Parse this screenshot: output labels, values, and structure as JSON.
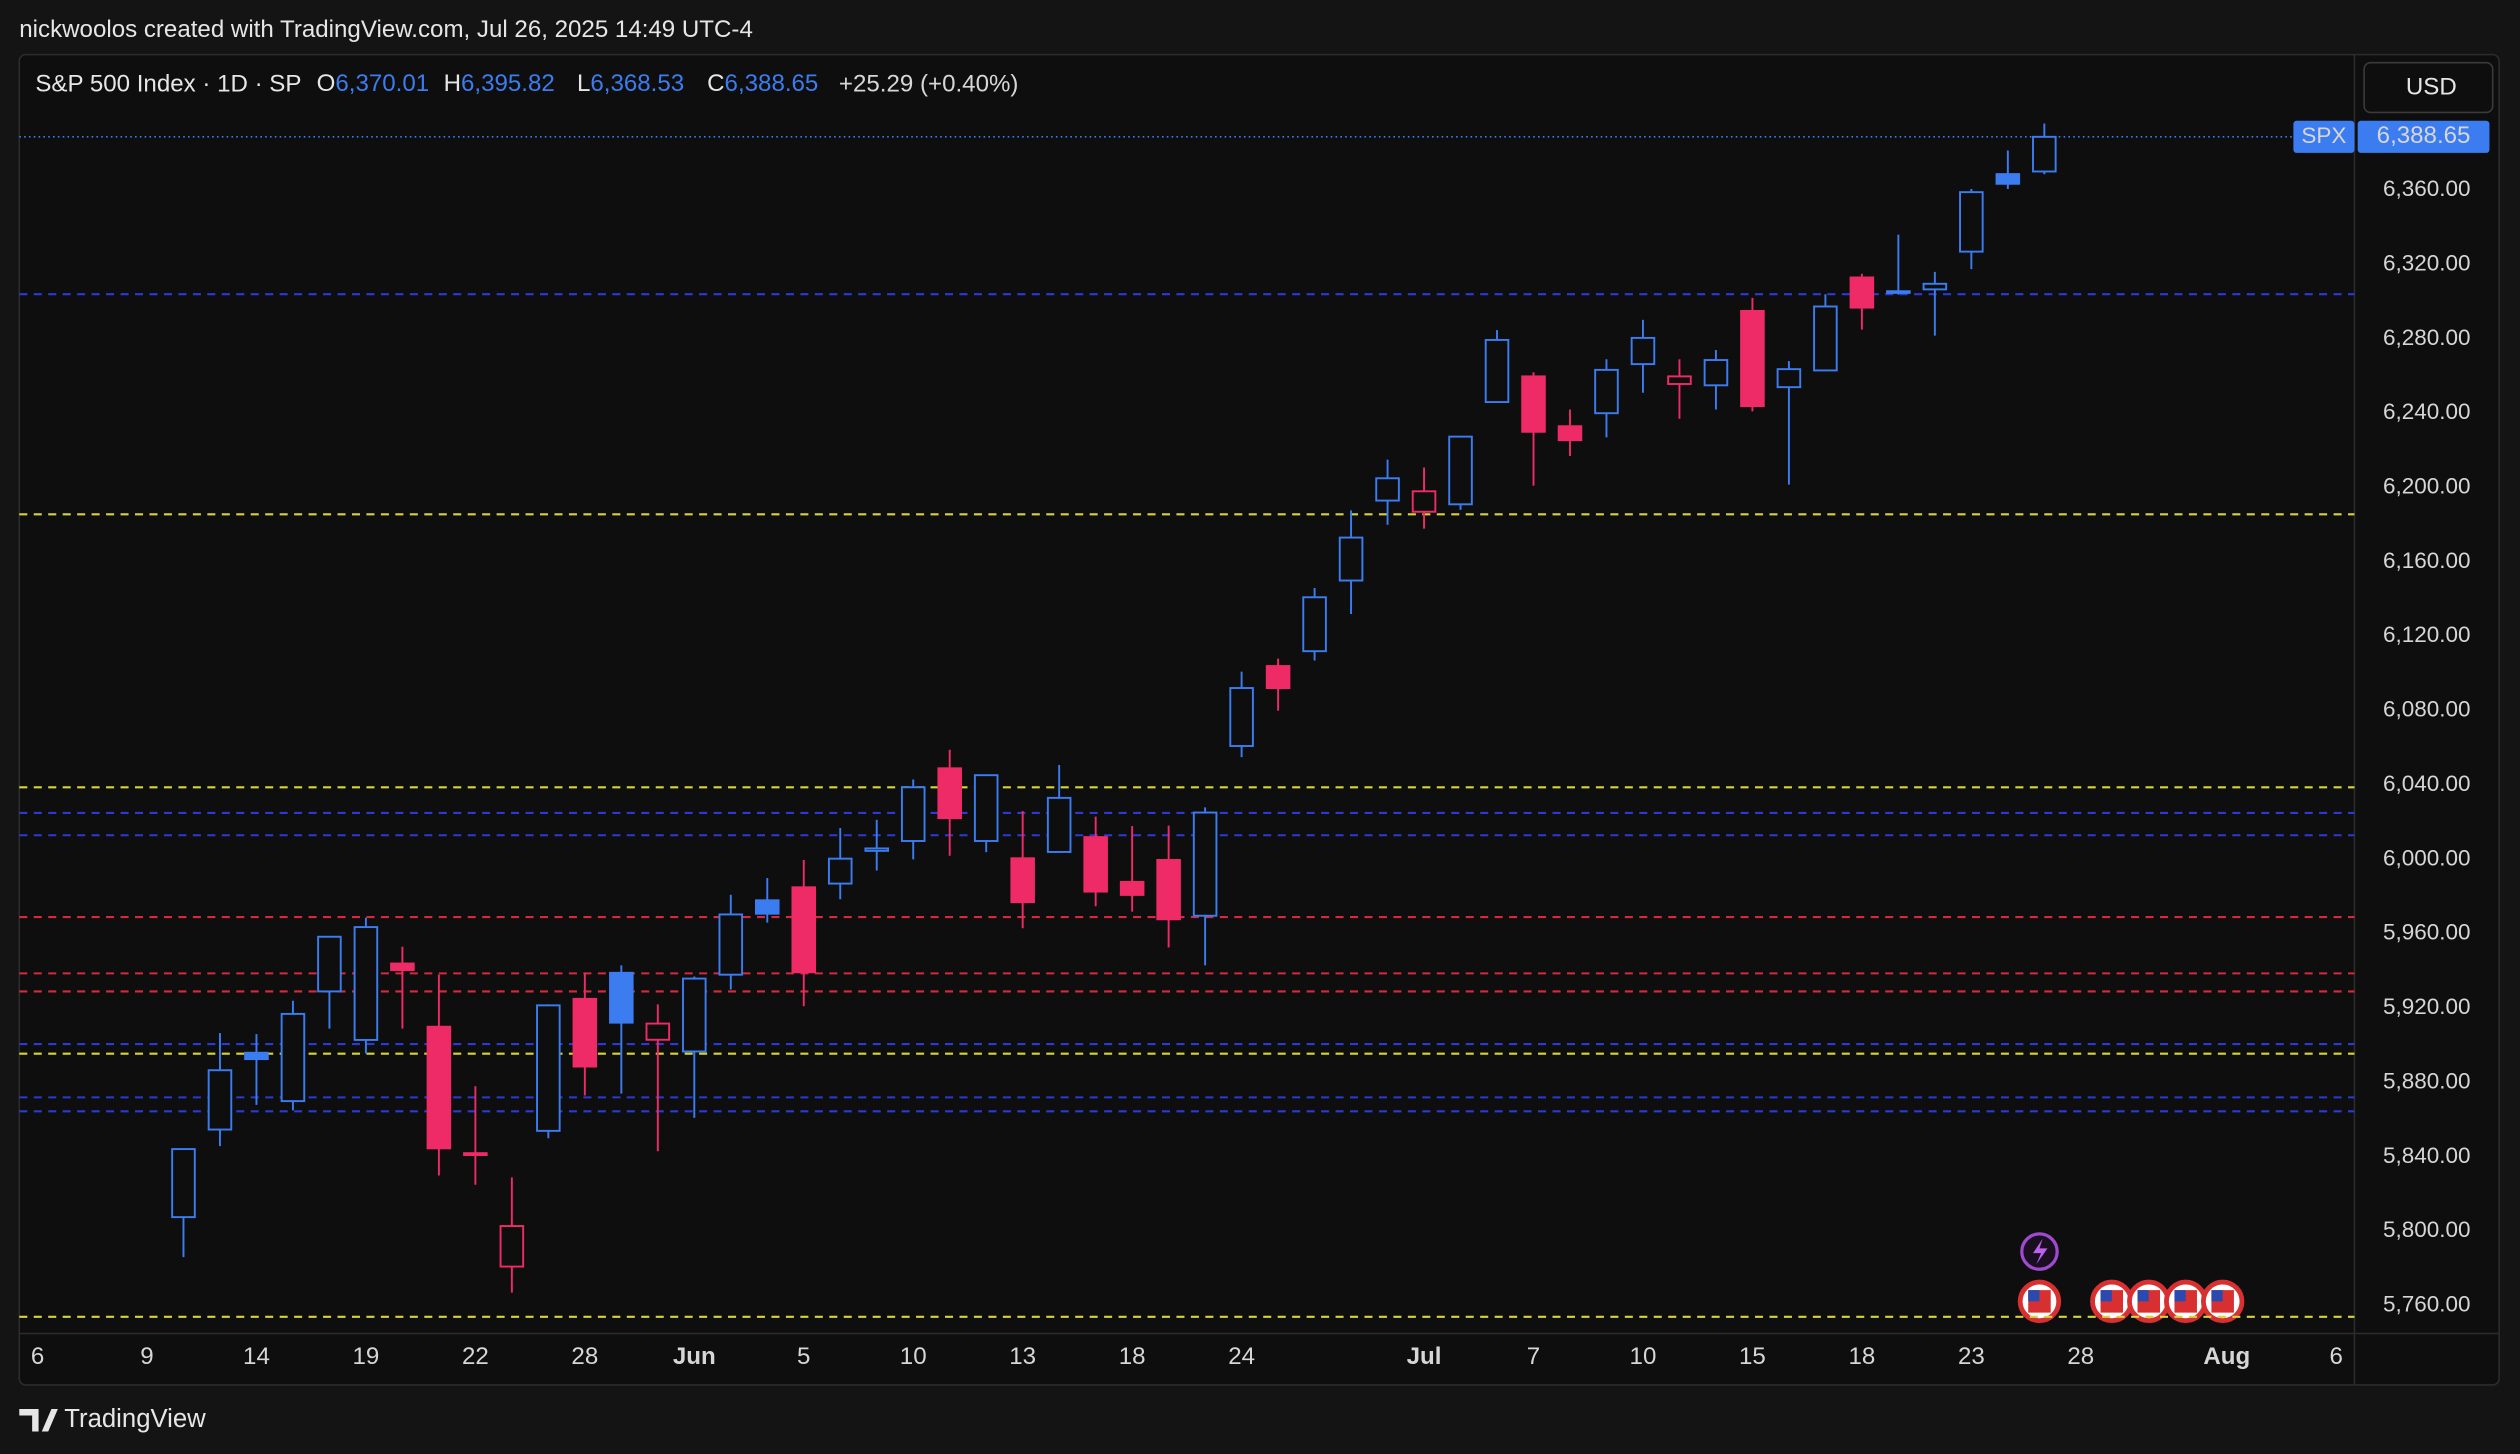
{
  "attribution": "nickwoolos created with TradingView.com, Jul 26, 2025 14:49 UTC-4",
  "currency": "USD",
  "brand": "TradingView",
  "chart_data": {
    "type": "candlestick",
    "header": {
      "title": "S&P 500 Index · 1D · SP",
      "ohlc": [
        {
          "key": "O",
          "label": "6,370.01"
        },
        {
          "key": "H",
          "label": "6,395.82"
        },
        {
          "key": "L",
          "label": "6,368.53"
        },
        {
          "key": "C",
          "label": "6,388.65"
        }
      ],
      "change": "+25.29 (+0.40%)"
    },
    "categories": [
      "6",
      null,
      null,
      "9",
      null,
      null,
      "14",
      null,
      null,
      "19",
      null,
      null,
      "22",
      null,
      null,
      "28",
      null,
      null,
      "Jun",
      null,
      null,
      "5",
      null,
      null,
      "10",
      null,
      null,
      "13",
      null,
      null,
      "18",
      null,
      null,
      "24",
      null,
      null,
      null,
      null,
      "Jul",
      null,
      null,
      "7",
      null,
      null,
      "10",
      null,
      null,
      "15",
      null,
      null,
      "18",
      null,
      null,
      "23",
      null,
      null,
      "28",
      null,
      null,
      null,
      "Aug",
      null,
      null,
      "6"
    ],
    "open": [
      null,
      null,
      null,
      null,
      5807.6,
      5854.7,
      5896,
      5870,
      5929,
      5902.9,
      5944,
      5910,
      5841,
      5781,
      5854,
      5925,
      5939,
      5903,
      5896.7,
      5938,
      5978,
      5985,
      5987,
      6004.6,
      6009.9,
      6049,
      6009.9,
      6000.6,
      6004,
      6012,
      5987.9,
      5999.7,
      5969.7,
      6061,
      6104,
      6112,
      6150,
      6193,
      6187,
      6191,
      6246,
      6259.8,
      6233,
      6240,
      6266.4,
      6255.7,
      6255,
      6295,
      6254,
      6263,
      6313,
      6304.7,
      6306.6,
      6326.9,
      6368.6,
      6370.01,
      null,
      null,
      null,
      null,
      null,
      null,
      null,
      null
    ],
    "high": [
      null,
      null,
      null,
      null,
      5844.2,
      5906.6,
      5906,
      5924,
      5958.6,
      5968.6,
      5953,
      5938,
      5878,
      5829,
      5922,
      5939,
      5943,
      5922,
      5937,
      5981,
      5990,
      5999.7,
      6016.9,
      6021.3,
      6043,
      6059,
      6045.4,
      6026,
      6050.8,
      6023,
      6018,
      6018.2,
      6028,
      6101,
      6108,
      6146,
      6187.7,
      6215,
      6210.8,
      6227.6,
      6284.7,
      6262,
      6242,
      6269,
      6290.2,
      6269,
      6274,
      6302,
      6268,
      6304,
      6315,
      6336,
      6316,
      6360.6,
      6381.3,
      6395.82,
      null,
      null,
      null,
      null,
      null,
      null,
      null,
      null
    ],
    "low": [
      null,
      null,
      null,
      null,
      5786.1,
      5845.8,
      5868,
      5865,
      5909,
      5895.7,
      5909,
      5830,
      5825,
      5767,
      5850,
      5873,
      5874,
      5843,
      5861,
      5930,
      5966,
      5921,
      5978.6,
      5994,
      6000,
      6002,
      6003.9,
      5963,
      6004,
      5974.8,
      5971.9,
      5952.6,
      5943,
      6055,
      6080,
      6107,
      6132,
      6180,
      6177.9,
      6188,
      6246,
      6201,
      6217,
      6227,
      6251,
      6237,
      6242,
      6241,
      6201.6,
      6263,
      6285,
      6303.8,
      6281.7,
      6317.5,
      6360.6,
      6368.53,
      null,
      null,
      null,
      null,
      null,
      null,
      null,
      null
    ],
    "close": [
      null,
      null,
      null,
      null,
      5844.2,
      5886.6,
      5892.6,
      5916.9,
      5958.4,
      5963.6,
      5940.5,
      5844.6,
      5842,
      5802.8,
      5921.5,
      5888.6,
      5912.2,
      5911.7,
      5935.9,
      5970.4,
      5970.8,
      5939.3,
      6000.4,
      6005.9,
      6038.8,
      6022.2,
      6045.3,
      5977,
      6033.1,
      5982.7,
      5980.9,
      5967.8,
      6025.2,
      6092.18,
      6092.16,
      6141,
      6173.1,
      6205,
      6198,
      6227.4,
      6279.4,
      6230,
      6225.5,
      6263.3,
      6280.5,
      6259.8,
      6268.6,
      6243.8,
      6263.7,
      6297.4,
      6296.8,
      6305.6,
      6309.6,
      6358.9,
      6363.4,
      6388.65,
      null,
      null,
      null,
      null,
      null,
      null,
      null,
      null
    ],
    "up_color": "#3b7cf0",
    "down_color": "#ee2a67",
    "ylim": [
      5745,
      6432
    ],
    "yticks": [
      {
        "value": 5760,
        "label": "5,760.00"
      },
      {
        "value": 5800,
        "label": "5,800.00"
      },
      {
        "value": 5840,
        "label": "5,840.00"
      },
      {
        "value": 5880,
        "label": "5,880.00"
      },
      {
        "value": 5920,
        "label": "5,920.00"
      },
      {
        "value": 5960,
        "label": "5,960.00"
      },
      {
        "value": 6000,
        "label": "6,000.00"
      },
      {
        "value": 6040,
        "label": "6,040.00"
      },
      {
        "value": 6080,
        "label": "6,080.00"
      },
      {
        "value": 6120,
        "label": "6,120.00"
      },
      {
        "value": 6160,
        "label": "6,160.00"
      },
      {
        "value": 6200,
        "label": "6,200.00"
      },
      {
        "value": 6240,
        "label": "6,240.00"
      },
      {
        "value": 6280,
        "label": "6,280.00"
      },
      {
        "value": 6320,
        "label": "6,320.00"
      },
      {
        "value": 6360,
        "label": "6,360.00"
      }
    ],
    "grid": false,
    "levels": [
      {
        "value": 6304,
        "color": "#2a3ad6"
      },
      {
        "value": 6185.6,
        "color": "#d6d43a"
      },
      {
        "value": 6038.8,
        "color": "#d6d43a"
      },
      {
        "value": 6025,
        "color": "#2a3ad6"
      },
      {
        "value": 6013,
        "color": "#2a3ad6"
      },
      {
        "value": 5969,
        "color": "#d62a3c"
      },
      {
        "value": 5938.7,
        "color": "#d62a3c"
      },
      {
        "value": 5929,
        "color": "#d62a3c"
      },
      {
        "value": 5900.7,
        "color": "#2a3ad6"
      },
      {
        "value": 5895.5,
        "color": "#d6d43a"
      },
      {
        "value": 5872,
        "color": "#2a3ad6"
      },
      {
        "value": 5864.5,
        "color": "#2a3ad6"
      },
      {
        "value": 5754,
        "color": "#d6d43a"
      }
    ],
    "last_price": {
      "symbol": "SPX",
      "value": 6388.65,
      "label": "6,388.65"
    }
  }
}
